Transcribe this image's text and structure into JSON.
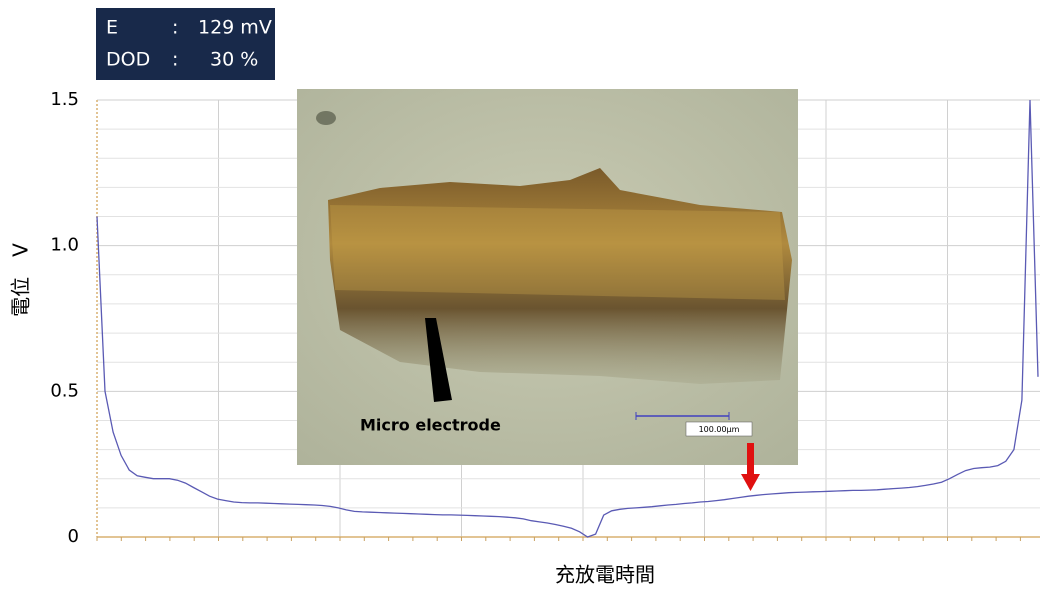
{
  "chart_data": {
    "type": "line",
    "y_label": "電位　V",
    "x_label": "充放電時間",
    "ylim": [
      0,
      1.5
    ],
    "yticks": [
      0,
      0.5,
      {
        "value": 1.0,
        "label": "1.0"
      },
      {
        "value": 1.5,
        "label": "1.5"
      }
    ],
    "yminorticks": [
      0.1,
      0.2,
      0.3,
      0.4,
      0.6,
      0.7,
      0.8,
      0.9,
      1.1,
      1.2,
      1.3,
      1.4
    ],
    "grid": true,
    "color": "#5a5ab4",
    "values": [
      1.1,
      0.5,
      0.36,
      0.28,
      0.23,
      0.21,
      0.205,
      0.2,
      0.2,
      0.2,
      0.195,
      0.185,
      0.17,
      0.155,
      0.14,
      0.13,
      0.125,
      0.12,
      0.118,
      0.117,
      0.117,
      0.116,
      0.115,
      0.114,
      0.113,
      0.112,
      0.111,
      0.11,
      0.108,
      0.105,
      0.1,
      0.093,
      0.088,
      0.086,
      0.085,
      0.084,
      0.083,
      0.082,
      0.081,
      0.08,
      0.079,
      0.078,
      0.077,
      0.076,
      0.076,
      0.075,
      0.074,
      0.073,
      0.072,
      0.071,
      0.07,
      0.068,
      0.066,
      0.062,
      0.056,
      0.052,
      0.048,
      0.043,
      0.037,
      0.03,
      0.018,
      0.0,
      0.01,
      0.075,
      0.09,
      0.095,
      0.098,
      0.1,
      0.102,
      0.104,
      0.107,
      0.11,
      0.112,
      0.115,
      0.117,
      0.12,
      0.122,
      0.125,
      0.128,
      0.132,
      0.136,
      0.14,
      0.143,
      0.146,
      0.148,
      0.15,
      0.152,
      0.153,
      0.154,
      0.155,
      0.156,
      0.157,
      0.158,
      0.159,
      0.16,
      0.16,
      0.161,
      0.162,
      0.164,
      0.166,
      0.168,
      0.17,
      0.173,
      0.177,
      0.182,
      0.188,
      0.2,
      0.215,
      0.228,
      0.235,
      0.238,
      0.24,
      0.245,
      0.26,
      0.3,
      0.47,
      1.5,
      0.55
    ],
    "readout": [
      [
        "E",
        ":",
        "129 mV"
      ],
      [
        "DOD",
        ":",
        "30 %"
      ]
    ],
    "inset_label": "Micro electrode",
    "scale_bar_label": "100.00μm"
  }
}
